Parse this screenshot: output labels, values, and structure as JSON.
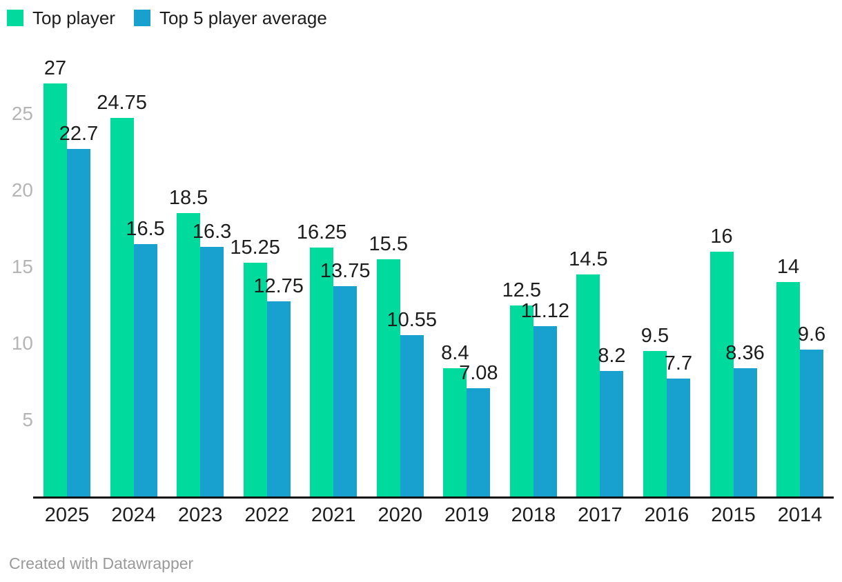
{
  "legend": {
    "items": [
      {
        "label": "Top player",
        "color": "#00da9d",
        "icon": "legend-swatch-green"
      },
      {
        "label": "Top 5 player average",
        "color": "#18a1cf",
        "icon": "legend-swatch-blue"
      }
    ]
  },
  "chart_data": {
    "type": "bar",
    "title": "",
    "categories": [
      "2025",
      "2024",
      "2023",
      "2022",
      "2021",
      "2020",
      "2019",
      "2018",
      "2017",
      "2016",
      "2015",
      "2014"
    ],
    "series": [
      {
        "name": "Top player",
        "color": "#00da9d",
        "values": [
          27,
          24.75,
          18.5,
          15.25,
          16.25,
          15.5,
          8.4,
          12.5,
          14.5,
          9.5,
          16,
          14
        ]
      },
      {
        "name": "Top 5 player average",
        "color": "#18a1cf",
        "values": [
          22.7,
          16.5,
          16.3,
          12.75,
          13.75,
          10.55,
          7.08,
          11.12,
          8.2,
          7.7,
          8.36,
          9.6
        ]
      }
    ],
    "y_ticks": [
      5,
      10,
      15,
      20,
      25
    ],
    "ylim": [
      0,
      27.5
    ],
    "xlabel": "",
    "ylabel": "",
    "value_labels": true,
    "grid": false,
    "legend_position": "top-left",
    "axis_text_color": "#b5b5b5",
    "label_text_color": "#1d1d1d",
    "baseline_color": "#111111"
  },
  "footer": {
    "text": "Created with Datawrapper"
  }
}
